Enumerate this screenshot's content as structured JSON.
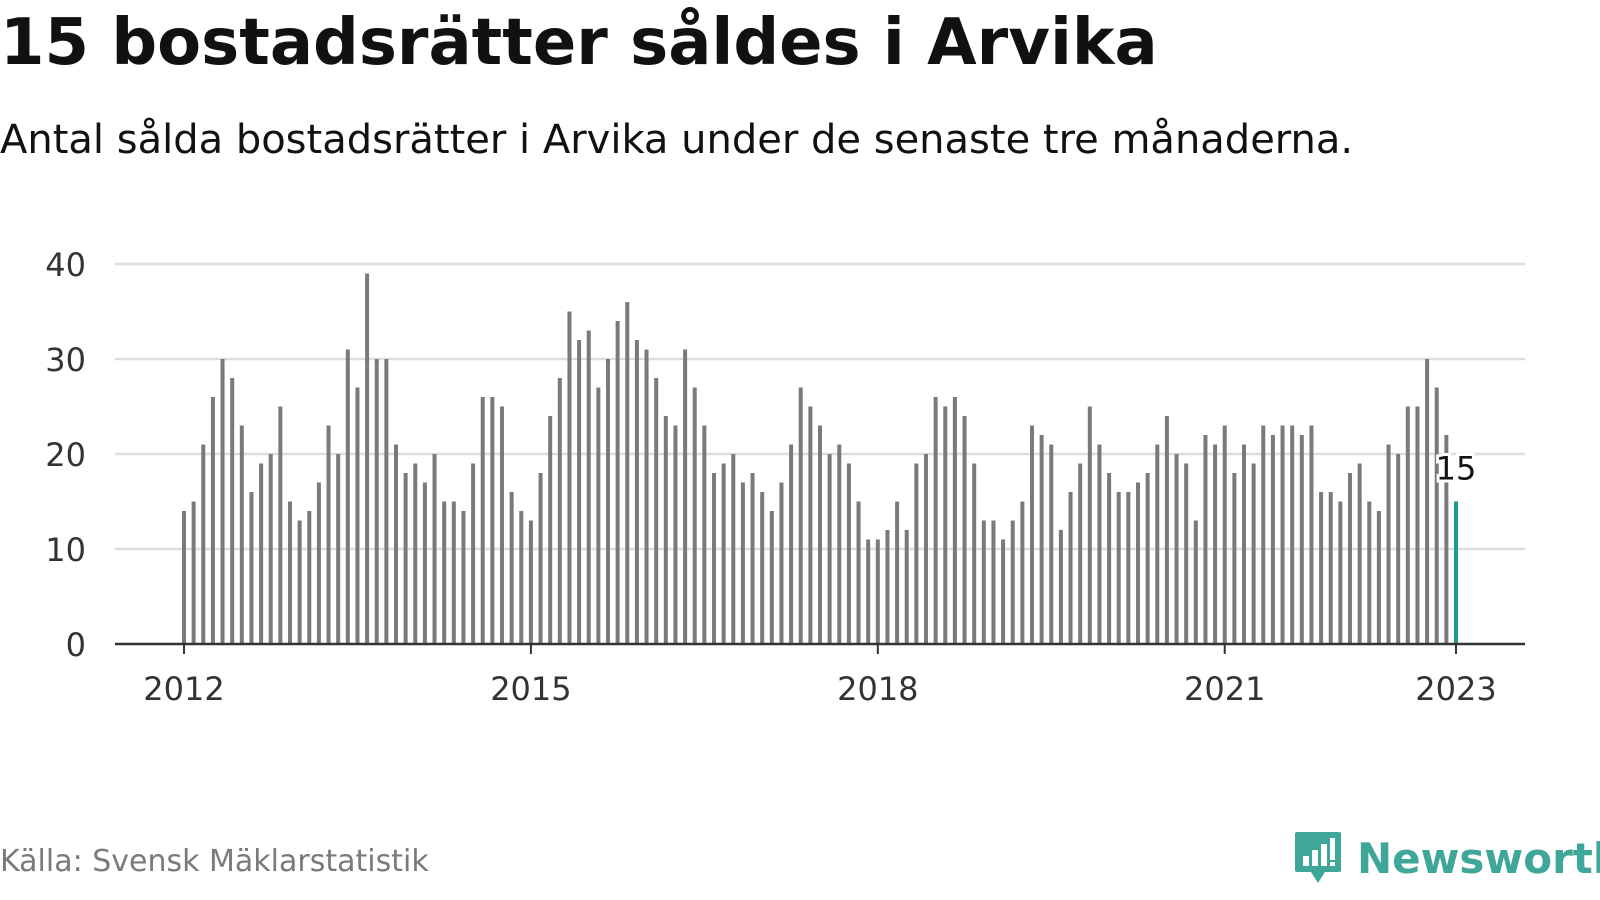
{
  "header": {
    "title": "15 bostadsrätter såldes i Arvika",
    "subtitle": "Antal sålda bostadsrätter i Arvika under de senaste tre månaderna."
  },
  "footer": {
    "source": "Källa: Svensk Mäklarstatistik",
    "brand": "Newsworthy",
    "brand_icon": "bar-chart-speech-bubble-icon"
  },
  "colors": {
    "bar": "#7a7a7d",
    "highlight": "#1a9c8f",
    "grid": "#dddddd",
    "axis": "#333333",
    "brand": "#3fa69a"
  },
  "chart_data": {
    "type": "bar",
    "ylim": [
      0,
      40
    ],
    "yticks": [
      0,
      10,
      20,
      30,
      40
    ],
    "xtick_labels": [
      "2012",
      "2015",
      "2018",
      "2021",
      "2023"
    ],
    "xtick_index": [
      0,
      36,
      72,
      108,
      132
    ],
    "grid": true,
    "start": "2012-01",
    "end": "2023-01",
    "highlight_label": "15",
    "values": [
      14,
      15,
      21,
      26,
      30,
      28,
      23,
      16,
      19,
      20,
      25,
      15,
      13,
      14,
      17,
      23,
      20,
      31,
      27,
      39,
      30,
      30,
      21,
      18,
      19,
      17,
      20,
      15,
      15,
      14,
      19,
      26,
      26,
      25,
      16,
      14,
      13,
      18,
      24,
      28,
      35,
      32,
      33,
      27,
      30,
      34,
      36,
      32,
      31,
      28,
      24,
      23,
      31,
      27,
      23,
      18,
      19,
      20,
      17,
      18,
      16,
      14,
      17,
      21,
      27,
      25,
      23,
      20,
      21,
      19,
      15,
      11,
      11,
      12,
      15,
      12,
      19,
      20,
      26,
      25,
      26,
      24,
      19,
      13,
      13,
      11,
      13,
      15,
      23,
      22,
      21,
      12,
      16,
      19,
      25,
      21,
      18,
      16,
      16,
      17,
      18,
      21,
      24,
      20,
      19,
      13,
      22,
      21,
      23,
      18,
      21,
      19,
      23,
      22,
      23,
      23,
      22,
      23,
      16,
      16,
      15,
      18,
      19,
      15,
      14,
      21,
      20,
      25,
      25,
      30,
      27,
      22,
      15
    ]
  }
}
